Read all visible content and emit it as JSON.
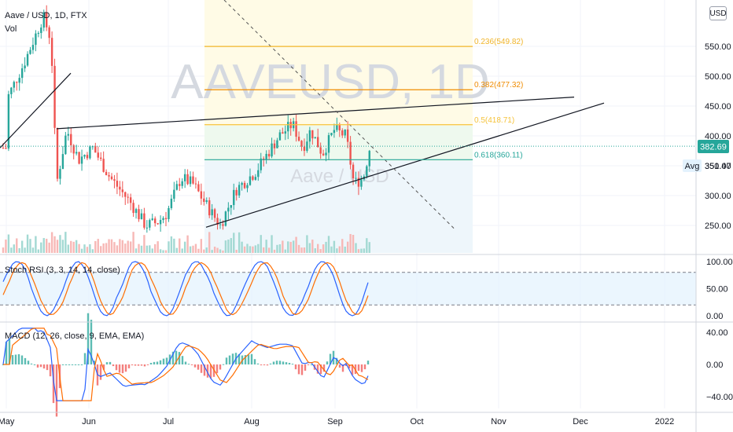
{
  "chart_data": [
    {
      "type": "candlestick",
      "symbol": "Aave / USD",
      "interval": "1D",
      "exchange": "FTX",
      "volume_label": "Vol",
      "watermark": "AAVEUSD, 1D",
      "watermark_sub": "Aave / USD",
      "currency": "USD",
      "last_price": "382.69",
      "avg_label": "Avg",
      "avg_value": "351.47",
      "y_ticks": [
        250,
        300,
        350,
        400,
        450,
        500,
        550
      ],
      "y_tick_labels": [
        "250.00",
        "300.00",
        "350.00",
        "400.00",
        "450.00",
        "500.00",
        "550.00"
      ],
      "x_labels": [
        "May",
        "Jun",
        "Jul",
        "Aug",
        "Sep",
        "Oct",
        "Nov",
        "Dec",
        "2022"
      ],
      "fibonacci": [
        {
          "label": "0.236(549.82)",
          "level": 0.236,
          "price": 549.82,
          "color": "#f0b429"
        },
        {
          "label": "0.382(477.32)",
          "level": 0.382,
          "price": 477.32,
          "color": "#f08c00"
        },
        {
          "label": "0.5(418.71)",
          "level": 0.5,
          "price": 418.71,
          "color": "#f5c33b"
        },
        {
          "label": "0.618(360.11)",
          "level": 0.618,
          "price": 360.11,
          "color": "#26a69a"
        }
      ]
    },
    {
      "type": "line",
      "name": "Stoch RSI (3, 3, 14, 14, close)",
      "y_ticks": [
        0,
        50,
        100
      ],
      "y_tick_labels": [
        "0.00",
        "50.00",
        "100.00"
      ],
      "bands": [
        20,
        80
      ]
    },
    {
      "type": "bar",
      "name": "MACD (12, 26, close, 9, EMA, EMA)",
      "y_ticks": [
        -40,
        0,
        40
      ],
      "y_tick_labels": [
        "−40.00",
        "0.00",
        "40.00"
      ]
    }
  ],
  "toolbar": {
    "currency_button": "USD"
  }
}
